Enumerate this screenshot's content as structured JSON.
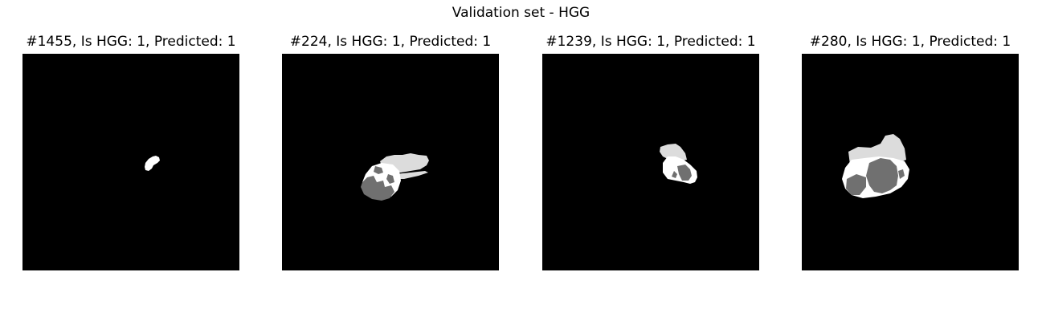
{
  "figure": {
    "title": "Validation set - HGG"
  },
  "panels": [
    {
      "title": "#1455, Is HGG: 1, Predicted: 1"
    },
    {
      "title": "#224, Is HGG: 1, Predicted: 1"
    },
    {
      "title": "#1239, Is HGG: 1, Predicted: 1"
    },
    {
      "title": "#280, Is HGG: 1, Predicted: 1"
    }
  ],
  "colors": {
    "background": "#000000",
    "label_white": "#ffffff",
    "label_light": "#d9d9d9",
    "label_dark": "#707070"
  }
}
